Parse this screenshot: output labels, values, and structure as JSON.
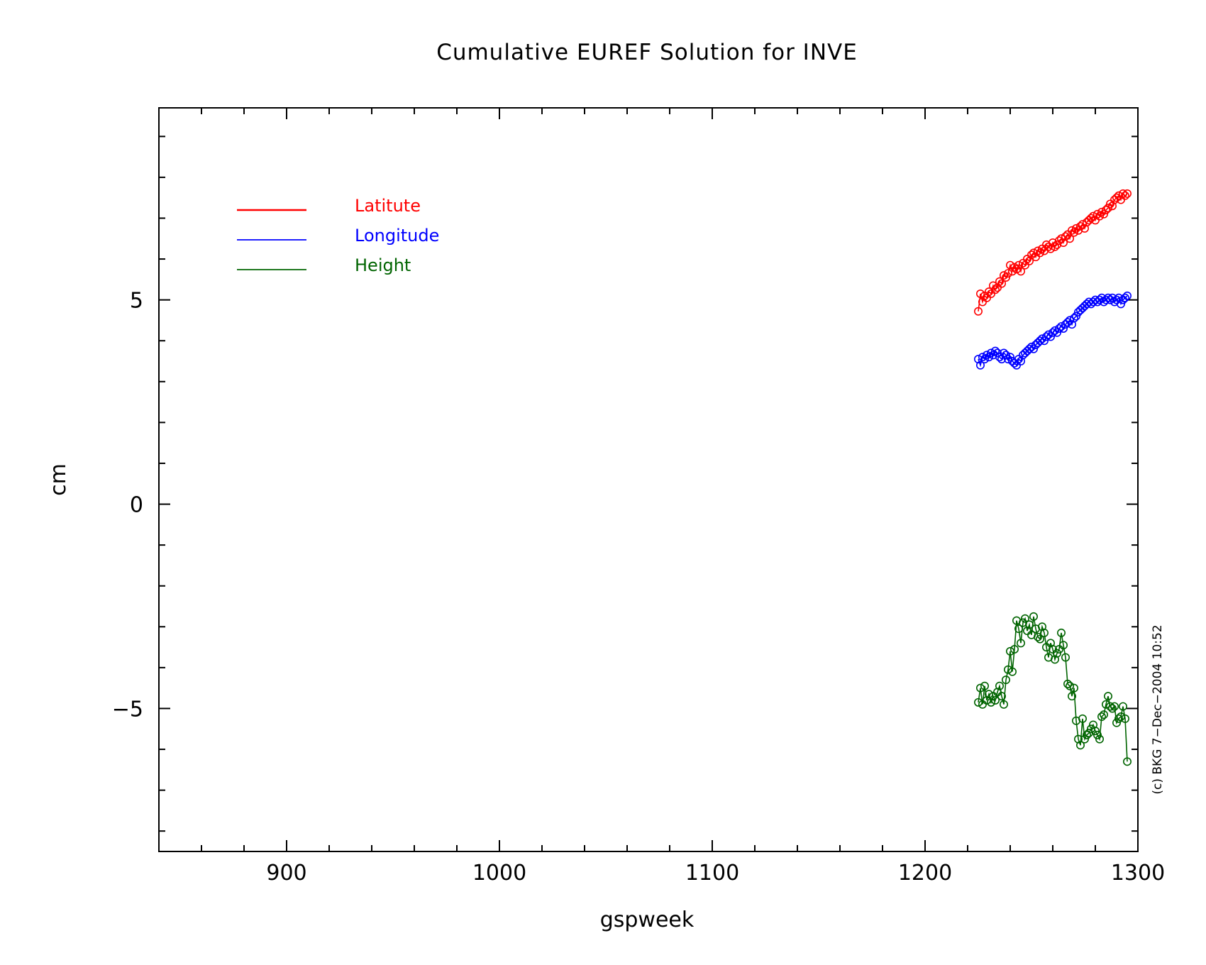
{
  "chart_data": {
    "type": "line",
    "title": "Cumulative EUREF Solution for INVE",
    "xlabel": "gspweek",
    "ylabel": "cm",
    "xlim": [
      840,
      1300
    ],
    "ylim": [
      -8.5,
      9.7
    ],
    "x_ticks": [
      900,
      1000,
      1100,
      1200,
      1300
    ],
    "x_tick_labels": [
      "900",
      "1000",
      "1100",
      "1200",
      "1300"
    ],
    "y_ticks": [
      -5,
      0,
      5
    ],
    "y_tick_labels": [
      "−5",
      "0",
      "5"
    ],
    "grid": false,
    "legend_position": "top-left",
    "credit": "(c) BKG 7−Dec−2004 10:52",
    "series": [
      {
        "name": "Latitute",
        "color": "#ff0000",
        "marker": "circle",
        "x": [
          1225,
          1226,
          1227,
          1228,
          1229,
          1230,
          1231,
          1232,
          1233,
          1234,
          1235,
          1236,
          1237,
          1238,
          1239,
          1240,
          1241,
          1242,
          1243,
          1244,
          1245,
          1246,
          1247,
          1248,
          1249,
          1250,
          1251,
          1252,
          1253,
          1254,
          1255,
          1256,
          1257,
          1258,
          1259,
          1260,
          1261,
          1262,
          1263,
          1264,
          1265,
          1266,
          1267,
          1268,
          1269,
          1270,
          1271,
          1272,
          1273,
          1274,
          1275,
          1276,
          1277,
          1278,
          1279,
          1280,
          1281,
          1282,
          1283,
          1284,
          1285,
          1286,
          1287,
          1288,
          1289,
          1290,
          1291,
          1292,
          1293,
          1294,
          1295
        ],
        "values": [
          4.72,
          5.15,
          4.95,
          5.1,
          5.05,
          5.2,
          5.15,
          5.35,
          5.25,
          5.3,
          5.45,
          5.4,
          5.6,
          5.55,
          5.65,
          5.85,
          5.7,
          5.8,
          5.75,
          5.85,
          5.7,
          5.9,
          5.85,
          6.0,
          5.95,
          6.1,
          6.15,
          6.05,
          6.2,
          6.15,
          6.25,
          6.2,
          6.35,
          6.3,
          6.25,
          6.4,
          6.3,
          6.35,
          6.45,
          6.5,
          6.4,
          6.55,
          6.6,
          6.5,
          6.7,
          6.65,
          6.75,
          6.7,
          6.8,
          6.85,
          6.75,
          6.9,
          6.95,
          7.0,
          7.05,
          6.95,
          7.1,
          7.05,
          7.15,
          7.1,
          7.2,
          7.25,
          7.35,
          7.3,
          7.45,
          7.5,
          7.55,
          7.45,
          7.6,
          7.55,
          7.6
        ]
      },
      {
        "name": "Longitude",
        "color": "#0000ff",
        "marker": "circle",
        "x": [
          1225,
          1226,
          1227,
          1228,
          1229,
          1230,
          1231,
          1232,
          1233,
          1234,
          1235,
          1236,
          1237,
          1238,
          1239,
          1240,
          1241,
          1242,
          1243,
          1244,
          1245,
          1246,
          1247,
          1248,
          1249,
          1250,
          1251,
          1252,
          1253,
          1254,
          1255,
          1256,
          1257,
          1258,
          1259,
          1260,
          1261,
          1262,
          1263,
          1264,
          1265,
          1266,
          1267,
          1268,
          1269,
          1270,
          1271,
          1272,
          1273,
          1274,
          1275,
          1276,
          1277,
          1278,
          1279,
          1280,
          1281,
          1282,
          1283,
          1284,
          1285,
          1286,
          1287,
          1288,
          1289,
          1290,
          1291,
          1292,
          1293,
          1294,
          1295
        ],
        "values": [
          3.55,
          3.4,
          3.6,
          3.55,
          3.65,
          3.6,
          3.7,
          3.65,
          3.75,
          3.7,
          3.6,
          3.55,
          3.7,
          3.65,
          3.55,
          3.6,
          3.5,
          3.45,
          3.4,
          3.55,
          3.5,
          3.65,
          3.7,
          3.75,
          3.8,
          3.85,
          3.8,
          3.9,
          3.95,
          4.0,
          4.05,
          4.0,
          4.1,
          4.15,
          4.1,
          4.2,
          4.25,
          4.2,
          4.3,
          4.35,
          4.3,
          4.4,
          4.45,
          4.5,
          4.4,
          4.55,
          4.6,
          4.7,
          4.75,
          4.8,
          4.85,
          4.9,
          4.95,
          4.9,
          4.95,
          5.0,
          4.95,
          5.0,
          5.05,
          4.95,
          5.0,
          5.05,
          5.0,
          5.05,
          4.95,
          5.0,
          5.05,
          4.9,
          5.0,
          5.05,
          5.1
        ]
      },
      {
        "name": "Height",
        "color": "#006400",
        "marker": "circle",
        "x": [
          1225,
          1226,
          1227,
          1228,
          1229,
          1230,
          1231,
          1232,
          1233,
          1234,
          1235,
          1236,
          1237,
          1238,
          1239,
          1240,
          1241,
          1242,
          1243,
          1244,
          1245,
          1246,
          1247,
          1248,
          1249,
          1250,
          1251,
          1252,
          1253,
          1254,
          1255,
          1256,
          1257,
          1258,
          1259,
          1260,
          1261,
          1262,
          1263,
          1264,
          1265,
          1266,
          1267,
          1268,
          1269,
          1270,
          1271,
          1272,
          1273,
          1274,
          1275,
          1276,
          1277,
          1278,
          1279,
          1280,
          1281,
          1282,
          1283,
          1284,
          1285,
          1286,
          1287,
          1288,
          1289,
          1290,
          1291,
          1292,
          1293,
          1294,
          1295
        ],
        "values": [
          -4.85,
          -4.5,
          -4.9,
          -4.45,
          -4.8,
          -4.65,
          -4.85,
          -4.7,
          -4.8,
          -4.6,
          -4.45,
          -4.7,
          -4.9,
          -4.3,
          -4.05,
          -3.6,
          -4.1,
          -3.55,
          -2.85,
          -3.05,
          -3.4,
          -2.9,
          -2.8,
          -3.1,
          -2.95,
          -3.2,
          -2.75,
          -3.05,
          -3.25,
          -3.3,
          -3.0,
          -3.15,
          -3.5,
          -3.75,
          -3.4,
          -3.55,
          -3.8,
          -3.65,
          -3.55,
          -3.15,
          -3.45,
          -3.75,
          -4.4,
          -4.45,
          -4.7,
          -4.5,
          -5.3,
          -5.75,
          -5.9,
          -5.25,
          -5.75,
          -5.65,
          -5.6,
          -5.5,
          -5.4,
          -5.55,
          -5.65,
          -5.75,
          -5.2,
          -5.15,
          -4.9,
          -4.7,
          -4.95,
          -5.0,
          -4.95,
          -5.35,
          -5.25,
          -5.2,
          -4.95,
          -5.25,
          -6.3
        ]
      }
    ]
  }
}
